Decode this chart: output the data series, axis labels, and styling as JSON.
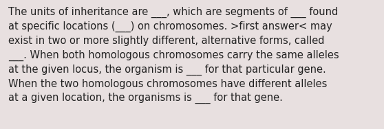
{
  "text": "The units of inheritance are ___, which are segments of ___ found\nat specific locations (___) on chromosomes. >first answer< may\nexist in two or more slightly different, alternative forms, called\n___. When both homologous chromosomes carry the same alleles\nat the given locus, the organism is ___ for that particular gene.\nWhen the two homologous chromosomes have different alleles\nat a given location, the organisms is ___ for that gene.",
  "background_color": "#e8e0e0",
  "text_color": "#222222",
  "font_size": 10.5,
  "fig_width": 5.58,
  "fig_height": 1.88,
  "dpi": 100
}
